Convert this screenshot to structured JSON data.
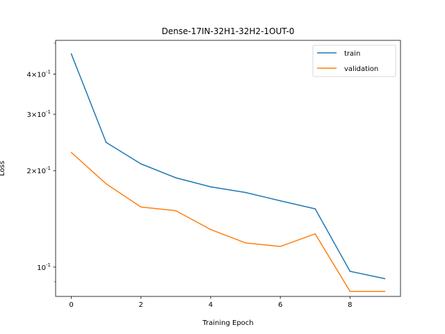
{
  "chart_data": {
    "type": "line",
    "title": "Dense-17IN-32H1-32H2-1OUT-0",
    "xlabel": "Training Epoch",
    "ylabel": "Loss",
    "yscale": "log",
    "xlim": [
      -0.45,
      9.45
    ],
    "ylim": [
      0.081,
      0.51
    ],
    "x_ticks": [
      0,
      2,
      4,
      6,
      8
    ],
    "x_tick_labels": [
      "0",
      "2",
      "4",
      "6",
      "8"
    ],
    "y_major_ticks": [
      0.1,
      0.2,
      0.3,
      0.4
    ],
    "y_major_labels": [
      "10^{-1}",
      "2×10^{-1}",
      "3×10^{-1}",
      "4×10^{-1}"
    ],
    "y_minor_ticks": [
      0.09,
      0.5
    ],
    "grid": false,
    "legend_position": "top-right",
    "x": [
      0,
      1,
      2,
      3,
      4,
      5,
      6,
      7,
      8,
      9
    ],
    "series": [
      {
        "name": "train",
        "color": "#1f77b4",
        "values": [
          0.463,
          0.245,
          0.21,
          0.19,
          0.178,
          0.171,
          0.161,
          0.152,
          0.097,
          0.092
        ]
      },
      {
        "name": "validation",
        "color": "#ff7f0e",
        "values": [
          0.228,
          0.182,
          0.154,
          0.15,
          0.131,
          0.119,
          0.116,
          0.127,
          0.084,
          0.084
        ]
      }
    ]
  }
}
